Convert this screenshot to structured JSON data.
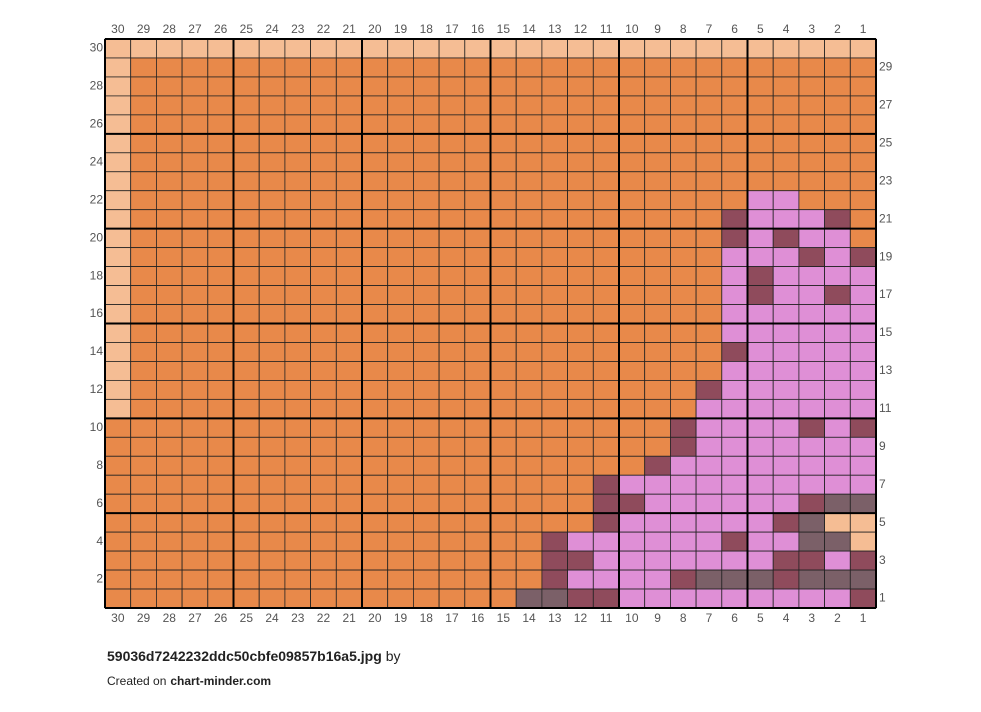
{
  "columns_top": [
    30,
    29,
    28,
    27,
    26,
    25,
    24,
    23,
    22,
    21,
    20,
    19,
    18,
    17,
    16,
    15,
    14,
    13,
    12,
    11,
    10,
    9,
    8,
    7,
    6,
    5,
    4,
    3,
    2,
    1
  ],
  "columns_bottom": [
    30,
    29,
    28,
    27,
    26,
    25,
    24,
    23,
    22,
    21,
    20,
    19,
    18,
    17,
    16,
    15,
    14,
    13,
    12,
    11,
    10,
    9,
    8,
    7,
    6,
    5,
    4,
    3,
    2,
    1
  ],
  "rows_left": [
    30,
    28,
    26,
    24,
    22,
    20,
    18,
    16,
    14,
    12,
    10,
    8,
    6,
    4,
    2
  ],
  "rows_right": [
    29,
    27,
    25,
    23,
    21,
    19,
    17,
    15,
    13,
    11,
    9,
    7,
    5,
    3,
    1
  ],
  "footer": {
    "filename": "59036d7242232ddc50cbfe09857b16a5.jpg",
    "by": "by",
    "created_on": "Created on",
    "site": "chart-minder.com"
  }
}
